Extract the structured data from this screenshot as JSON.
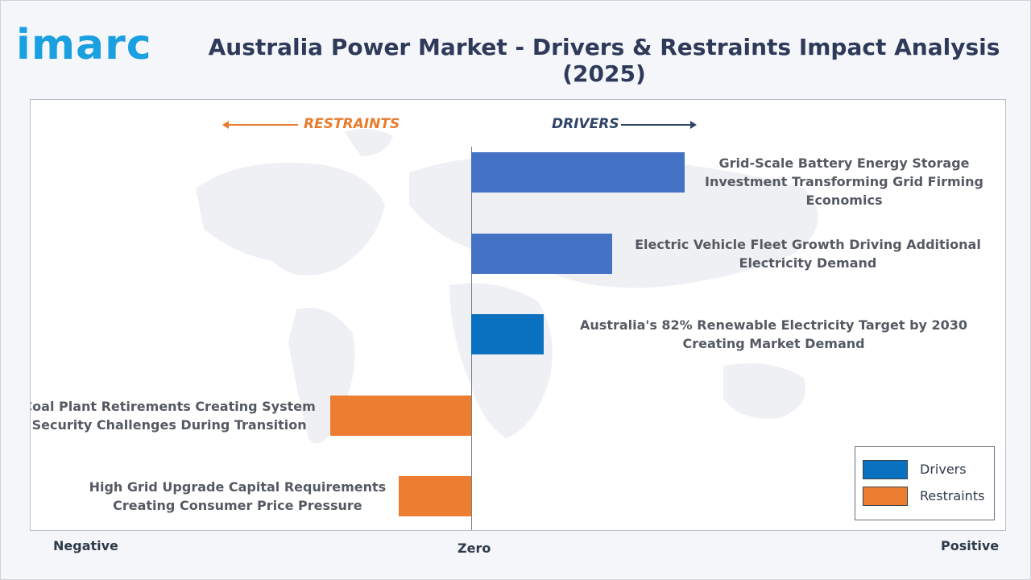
{
  "logo_text": "imarc",
  "chart_data": {
    "type": "bar",
    "orientation": "horizontal",
    "title": "Australia Power Market - Drivers & Restraints Impact Analysis (2025)",
    "direction_labels": {
      "left": "RESTRAINTS",
      "right": "DRIVERS"
    },
    "axis_labels": {
      "negative": "Negative",
      "zero": "Zero",
      "positive": "Positive"
    },
    "xlim": [
      -1,
      1
    ],
    "items": [
      {
        "category": "Grid-Scale Battery Energy Storage Investment Transforming Grid Firming Economics",
        "value": 0.5,
        "series": "Drivers",
        "color": "#4472c4"
      },
      {
        "category": "Electric Vehicle Fleet Growth Driving Additional Electricity Demand",
        "value": 0.33,
        "series": "Drivers",
        "color": "#4472c4"
      },
      {
        "category": "Australia's 82% Renewable Electricity Target by 2030 Creating Market Demand",
        "value": 0.17,
        "series": "Drivers",
        "color": "#0a70c0"
      },
      {
        "category": "Coal Plant Retirements Creating System Security Challenges During Transition",
        "value": -0.33,
        "series": "Restraints",
        "color": "#ed7d31"
      },
      {
        "category": "High Grid Upgrade Capital Requirements Creating Consumer Price Pressure",
        "value": -0.17,
        "series": "Restraints",
        "color": "#ed7d31"
      }
    ],
    "legend": [
      {
        "name": "Drivers",
        "color": "#0a70c0"
      },
      {
        "name": "Restraints",
        "color": "#ed7d31"
      }
    ],
    "legend_position": "bottom-right"
  }
}
